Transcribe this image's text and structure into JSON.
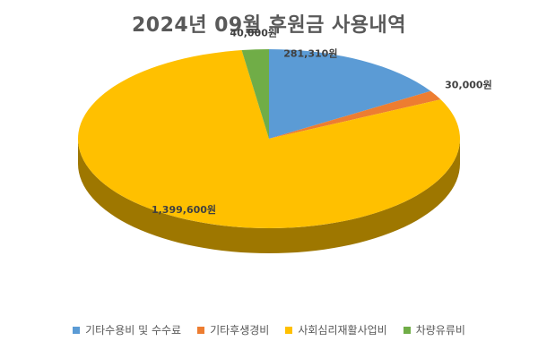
{
  "chart_data": {
    "type": "pie",
    "title": "2024년 09월 후원금 사용내역",
    "slices": [
      {
        "label": "기타수용비 및 수수료",
        "value": 281310,
        "value_label": "281,310원",
        "color": "#5b9bd5"
      },
      {
        "label": "기타후생경비",
        "value": 30000,
        "value_label": "30,000원",
        "color": "#ed7d31"
      },
      {
        "label": "사회심리재활사업비",
        "value": 1399600,
        "value_label": "1,399,600원",
        "color": "#ffc000"
      },
      {
        "label": "차량유류비",
        "value": 40000,
        "value_label": "40,000원",
        "color": "#70ad47"
      }
    ],
    "legend_position": "bottom",
    "style": "3d-pie"
  }
}
